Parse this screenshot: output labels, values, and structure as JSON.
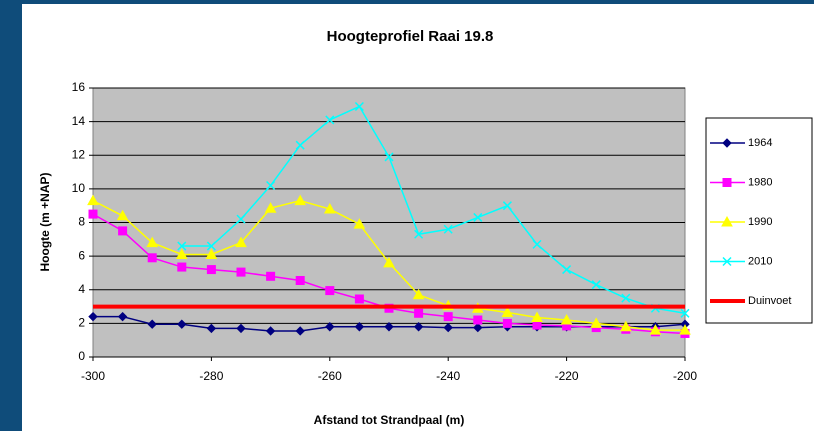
{
  "chart_data": {
    "type": "line",
    "title": "Hoogteprofiel Raai 19.8",
    "xlabel": "Afstand tot Strandpaal (m)",
    "ylabel": "Hoogte (m +NAP)",
    "x": [
      -300,
      -295,
      -290,
      -285,
      -280,
      -275,
      -270,
      -265,
      -260,
      -255,
      -250,
      -245,
      -240,
      -235,
      -230,
      -225,
      -220,
      -215,
      -210,
      -205,
      -200
    ],
    "xlim": [
      -300,
      -200
    ],
    "xticks": [
      -300,
      -280,
      -260,
      -240,
      -220,
      -200
    ],
    "ylim": [
      0,
      16
    ],
    "yticks": [
      0,
      2,
      4,
      6,
      8,
      10,
      12,
      14,
      16
    ],
    "grid": true,
    "legend": "right",
    "series": [
      {
        "name": "1964",
        "color": "#000080",
        "marker": "diamond",
        "values": [
          2.4,
          2.4,
          1.95,
          1.95,
          1.7,
          1.7,
          1.55,
          1.55,
          1.8,
          1.8,
          1.8,
          1.8,
          1.75,
          1.75,
          1.8,
          1.8,
          1.8,
          1.8,
          1.8,
          1.8,
          1.95
        ]
      },
      {
        "name": "1980",
        "color": "#ff00ff",
        "marker": "square",
        "values": [
          8.5,
          7.5,
          5.9,
          5.35,
          5.2,
          5.05,
          4.8,
          4.55,
          3.95,
          3.45,
          2.9,
          2.6,
          2.4,
          2.2,
          2.0,
          1.9,
          1.85,
          1.75,
          1.65,
          1.5,
          1.4
        ]
      },
      {
        "name": "1990",
        "color": "#ffff00",
        "marker": "triangle",
        "values": [
          9.3,
          8.4,
          6.8,
          6.1,
          6.1,
          6.8,
          8.85,
          9.3,
          8.8,
          7.9,
          5.6,
          3.7,
          3.05,
          2.9,
          2.65,
          2.35,
          2.2,
          2.0,
          1.8,
          1.6,
          1.6
        ]
      },
      {
        "name": "2010",
        "color": "#00ffff",
        "marker": "x",
        "values": [
          null,
          null,
          null,
          6.6,
          6.6,
          8.2,
          10.2,
          12.6,
          14.1,
          14.9,
          11.9,
          7.3,
          7.6,
          8.3,
          9.0,
          6.7,
          5.2,
          4.3,
          3.5,
          2.9,
          2.6
        ]
      },
      {
        "name": "Duinvoet",
        "color": "#ff0000",
        "marker": "none",
        "width": 4,
        "values": [
          3,
          3,
          3,
          3,
          3,
          3,
          3,
          3,
          3,
          3,
          3,
          3,
          3,
          3,
          3,
          3,
          3,
          3,
          3,
          3,
          3
        ]
      }
    ]
  }
}
